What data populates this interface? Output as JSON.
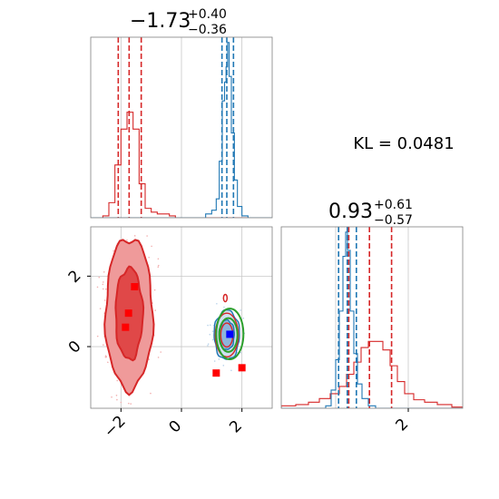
{
  "colors": {
    "red": "#d62728",
    "blue": "#1f77b4",
    "green": "#2ca02c",
    "square": "#ff0000",
    "marker_blue": "#0000ff",
    "grid": "#c8c8c8"
  },
  "chart_data": [
    {
      "type": "histogram",
      "panel": "top-left marginal of parameter 1",
      "title": {
        "main": "−1.73",
        "sup": "+0.40",
        "sub": "−0.36"
      },
      "xlim": [
        -3.0,
        3.0
      ],
      "grid": true,
      "series": [
        {
          "color": "red",
          "x": [
            -2.5,
            -2.3,
            -2.1,
            -1.9,
            -1.7,
            -1.5,
            -1.3,
            -1.1,
            -0.9,
            -0.7,
            -0.5,
            -0.3
          ],
          "values": [
            0.01,
            0.08,
            0.28,
            0.47,
            0.56,
            0.47,
            0.18,
            0.05,
            0.03,
            0.02,
            0.02,
            0.01
          ],
          "quantiles": [
            -2.09,
            -1.73,
            -1.33
          ]
        },
        {
          "color": "blue",
          "x": [
            0.9,
            1.1,
            1.2,
            1.3,
            1.4,
            1.45,
            1.5,
            1.55,
            1.6,
            1.7,
            1.8,
            1.9,
            2.1
          ],
          "values": [
            0.02,
            0.04,
            0.1,
            0.3,
            0.62,
            0.72,
            0.8,
            0.93,
            0.75,
            0.45,
            0.2,
            0.06,
            0.01
          ],
          "quantiles": [
            1.34,
            1.5,
            1.72
          ]
        }
      ]
    },
    {
      "type": "histogram",
      "panel": "bottom-right marginal of parameter 2",
      "title": {
        "main": "0.93",
        "sup": "+0.61",
        "sub": "−0.57"
      },
      "xlim": [
        -1.5,
        3.5
      ],
      "xticks": [
        "2"
      ],
      "grid": true,
      "series": [
        {
          "color": "red",
          "x": [
            -1.3,
            -0.9,
            -0.6,
            -0.3,
            0.0,
            0.2,
            0.4,
            0.6,
            0.8,
            1.0,
            1.2,
            1.4,
            1.6,
            1.8,
            2.0,
            2.3,
            2.6,
            3.0,
            3.4
          ],
          "values": [
            0.02,
            0.03,
            0.05,
            0.08,
            0.12,
            0.18,
            0.28,
            0.38,
            0.5,
            0.55,
            0.55,
            0.48,
            0.35,
            0.22,
            0.12,
            0.07,
            0.05,
            0.03,
            0.01
          ],
          "quantiles": [
            0.36,
            0.93,
            1.54
          ]
        },
        {
          "color": "blue",
          "x": [
            -0.2,
            -0.05,
            0.05,
            0.15,
            0.25,
            0.3,
            0.35,
            0.45,
            0.55,
            0.65,
            0.8,
            1.0
          ],
          "values": [
            0.02,
            0.15,
            0.4,
            0.8,
            1.25,
            1.45,
            1.3,
            0.8,
            0.45,
            0.2,
            0.08,
            0.02
          ],
          "quantiles": [
            0.08,
            0.32,
            0.57
          ]
        }
      ]
    },
    {
      "type": "contour-scatter",
      "panel": "bottom-left 2D posterior",
      "xlim": [
        -3.0,
        3.0
      ],
      "ylim": [
        -1.75,
        3.4
      ],
      "xticks": [
        "−2",
        "0",
        "2"
      ],
      "yticks": [
        "0",
        "2"
      ],
      "grid": true,
      "red_density": {
        "center": [
          -1.73,
          0.93
        ],
        "levels": [
          {
            "rx": 0.78,
            "ry": 2.15,
            "fill": "#ef9a9a"
          },
          {
            "rx": 0.45,
            "ry": 1.3,
            "fill": "#e04848"
          }
        ]
      },
      "blue_density": {
        "center": [
          1.5,
          0.33
        ],
        "levels": [
          {
            "rx": 0.42,
            "ry": 0.7
          },
          {
            "rx": 0.25,
            "ry": 0.42
          }
        ]
      },
      "green_contours": [
        {
          "cx": 1.6,
          "cy": 0.36,
          "rx": 0.45,
          "ry": 0.72
        },
        {
          "cx": 1.55,
          "cy": 0.33,
          "rx": 0.3,
          "ry": 0.48
        }
      ],
      "red_squares": [
        [
          -1.55,
          1.7
        ],
        [
          -1.75,
          0.95
        ],
        [
          -1.85,
          0.55
        ],
        [
          1.15,
          -0.75
        ],
        [
          2.0,
          -0.6
        ]
      ],
      "blue_square": [
        1.6,
        0.35
      ],
      "annotation_pos": [
        1.5,
        0.33
      ]
    }
  ],
  "annotation": {
    "kl_text": "KL = 0.0481"
  }
}
